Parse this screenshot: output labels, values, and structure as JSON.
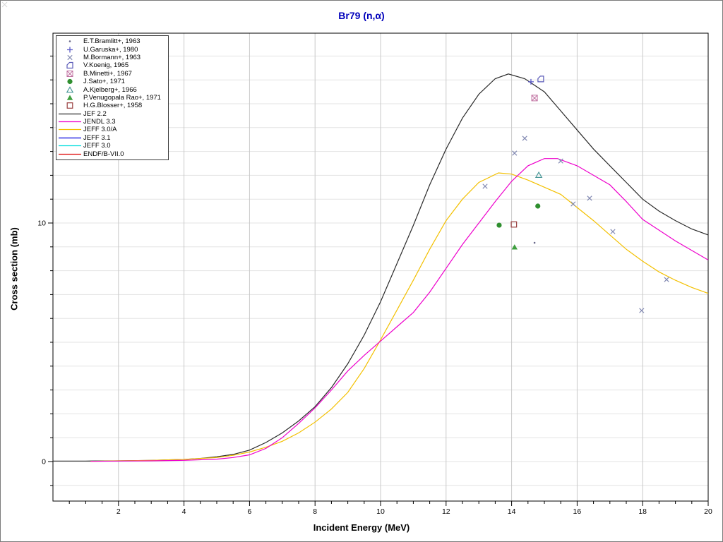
{
  "window": {
    "background": "#ffffff",
    "border_color": "#7a7a7a"
  },
  "chart_data": {
    "type": "line+scatter",
    "title": "Br79 (n,α)",
    "xlabel": "Incident Energy (MeV)",
    "ylabel": "Cross section (mb)",
    "x_range": [
      0,
      20
    ],
    "y_range": [
      -1.66,
      17.96
    ],
    "x_grid_step": 2,
    "y_grid_step": 1,
    "x_minor_step": 0.5,
    "x_tick_labels": [
      2,
      4,
      6,
      8,
      10,
      12,
      14,
      16,
      18,
      20
    ],
    "y_tick_labels": [
      0,
      10
    ],
    "grid": true,
    "legend_position": "top-left",
    "colors": {
      "title": "#0000bb",
      "grid_vertical": "#c9c9c9",
      "grid_horizontal": "#e3e3e3",
      "frame": "#000000"
    },
    "series": [
      {
        "name": "JEF 2.2",
        "color": "#2a2a2a",
        "visible": true,
        "points": [
          [
            0,
            0.02
          ],
          [
            1,
            0.02
          ],
          [
            2,
            0.03
          ],
          [
            3,
            0.05
          ],
          [
            4,
            0.09
          ],
          [
            4.5,
            0.13
          ],
          [
            5,
            0.2
          ],
          [
            5.5,
            0.3
          ],
          [
            6,
            0.48
          ],
          [
            6.5,
            0.8
          ],
          [
            7,
            1.2
          ],
          [
            7.5,
            1.7
          ],
          [
            8,
            2.3
          ],
          [
            8.5,
            3.1
          ],
          [
            9,
            4.1
          ],
          [
            9.5,
            5.3
          ],
          [
            10,
            6.7
          ],
          [
            10.5,
            8.3
          ],
          [
            11,
            9.9
          ],
          [
            11.5,
            11.6
          ],
          [
            12,
            13.1
          ],
          [
            12.5,
            14.4
          ],
          [
            13,
            15.4
          ],
          [
            13.5,
            16.05
          ],
          [
            13.9,
            16.25
          ],
          [
            14.4,
            16.05
          ],
          [
            15,
            15.5
          ],
          [
            15.5,
            14.7
          ],
          [
            16,
            13.9
          ],
          [
            16.5,
            13.1
          ],
          [
            17,
            12.4
          ],
          [
            17.5,
            11.7
          ],
          [
            18,
            11.0
          ],
          [
            18.5,
            10.5
          ],
          [
            19,
            10.1
          ],
          [
            19.5,
            9.75
          ],
          [
            20,
            9.5
          ]
        ]
      },
      {
        "name": "JENDL 3.3",
        "color": "#ee00cc",
        "visible": true,
        "points": [
          [
            1.15,
            0.01
          ],
          [
            2,
            0.02
          ],
          [
            3,
            0.03
          ],
          [
            4,
            0.05
          ],
          [
            5,
            0.1
          ],
          [
            5.5,
            0.17
          ],
          [
            6,
            0.28
          ],
          [
            6.5,
            0.55
          ],
          [
            7,
            1.0
          ],
          [
            7.5,
            1.6
          ],
          [
            8,
            2.25
          ],
          [
            8.5,
            3.0
          ],
          [
            9,
            3.8
          ],
          [
            9.5,
            4.45
          ],
          [
            10,
            5.05
          ],
          [
            10.5,
            5.65
          ],
          [
            11,
            6.25
          ],
          [
            11.5,
            7.1
          ],
          [
            12,
            8.1
          ],
          [
            12.5,
            9.1
          ],
          [
            13,
            10.0
          ],
          [
            13.5,
            10.9
          ],
          [
            14,
            11.75
          ],
          [
            14.5,
            12.4
          ],
          [
            15,
            12.7
          ],
          [
            15.4,
            12.7
          ],
          [
            16,
            12.4
          ],
          [
            16.5,
            12.0
          ],
          [
            17,
            11.6
          ],
          [
            17.5,
            10.9
          ],
          [
            18,
            10.15
          ],
          [
            18.5,
            9.7
          ],
          [
            19,
            9.25
          ],
          [
            19.5,
            8.85
          ],
          [
            20,
            8.45
          ]
        ]
      },
      {
        "name": "JEFF 3.0/A",
        "color": "#f3c000",
        "visible": true,
        "points": [
          [
            1.15,
            0.01
          ],
          [
            2,
            0.03
          ],
          [
            3,
            0.05
          ],
          [
            4,
            0.09
          ],
          [
            5,
            0.17
          ],
          [
            5.5,
            0.26
          ],
          [
            6,
            0.4
          ],
          [
            6.5,
            0.6
          ],
          [
            7,
            0.85
          ],
          [
            7.5,
            1.2
          ],
          [
            8,
            1.65
          ],
          [
            8.5,
            2.2
          ],
          [
            9,
            2.9
          ],
          [
            9.5,
            3.9
          ],
          [
            10,
            5.1
          ],
          [
            10.5,
            6.35
          ],
          [
            11,
            7.6
          ],
          [
            11.5,
            8.9
          ],
          [
            12,
            10.1
          ],
          [
            12.5,
            11.0
          ],
          [
            13,
            11.7
          ],
          [
            13.6,
            12.1
          ],
          [
            14,
            12.05
          ],
          [
            14.5,
            11.8
          ],
          [
            15,
            11.5
          ],
          [
            15.5,
            11.2
          ],
          [
            16,
            10.65
          ],
          [
            16.5,
            10.1
          ],
          [
            17,
            9.5
          ],
          [
            17.5,
            8.9
          ],
          [
            18,
            8.4
          ],
          [
            18.5,
            7.95
          ],
          [
            19,
            7.6
          ],
          [
            19.5,
            7.3
          ],
          [
            20,
            7.05
          ]
        ]
      },
      {
        "name": "JEFF 3.1",
        "color": "#0000dd",
        "visible": false,
        "points": []
      },
      {
        "name": "JEFF 3.0",
        "color": "#00dddd",
        "visible": false,
        "points": []
      },
      {
        "name": "ENDF/B-VII.0",
        "color": "#dd0000",
        "visible": false,
        "points": []
      }
    ],
    "datasets": [
      {
        "name": "E.T.Bramlitt+, 1963",
        "marker": "dot",
        "color": "#666688",
        "points": [
          [
            14.7,
            9.17
          ]
        ]
      },
      {
        "name": "U.Garuska+, 1980",
        "marker": "plus",
        "color": "#5a5ac8",
        "points": [
          [
            14.59,
            15.92
          ]
        ]
      },
      {
        "name": "M.Bormann+, 1963",
        "marker": "cross",
        "color": "#8289b2",
        "points": [
          [
            13.19,
            11.54
          ],
          [
            14.09,
            12.93
          ],
          [
            14.4,
            13.55
          ],
          [
            15.5,
            12.6
          ],
          [
            15.88,
            10.8
          ],
          [
            16.38,
            11.04
          ],
          [
            17.09,
            9.64
          ],
          [
            17.97,
            6.33
          ],
          [
            18.73,
            7.63
          ]
        ]
      },
      {
        "name": "V.Koenig, 1965",
        "marker": "notched-square",
        "color": "#5a5ab8",
        "points": [
          [
            14.89,
            16.04
          ]
        ]
      },
      {
        "name": "B.Minetti+, 1967",
        "marker": "crossed-square",
        "color": "#c070a0",
        "points": [
          [
            14.7,
            15.24
          ]
        ]
      },
      {
        "name": "J.Sato+, 1971",
        "marker": "filled-circle",
        "color": "#2f8f2f",
        "points": [
          [
            13.62,
            9.91
          ],
          [
            14.8,
            10.71
          ]
        ]
      },
      {
        "name": "A.Kjelberg+, 1966",
        "marker": "open-triangle",
        "color": "#4a9898",
        "points": [
          [
            14.83,
            12.01
          ]
        ]
      },
      {
        "name": "P.Venugopala Rao+, 1971",
        "marker": "filled-triangle",
        "color": "#3f9f3f",
        "points": [
          [
            14.09,
            8.99
          ]
        ]
      },
      {
        "name": "H.G.Blosser+, 1958",
        "marker": "open-square",
        "color": "#9a4040",
        "points": [
          [
            14.07,
            9.94
          ]
        ]
      }
    ]
  }
}
